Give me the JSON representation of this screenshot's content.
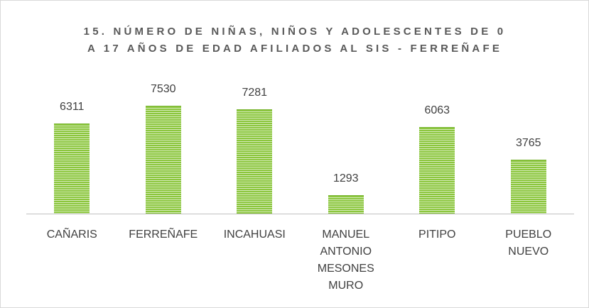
{
  "chart_data": {
    "type": "bar",
    "title": "15. NÚMERO DE NIÑAS, NIÑOS Y ADOLESCENTES DE 0 A 17 AÑOS DE EDAD AFILIADOS AL SIS - FERREÑAFE",
    "categories": [
      "CAÑARIS",
      "FERREÑAFE",
      "INCAHUASI",
      "MANUEL ANTONIO MESONES MURO",
      "PITIPO",
      "PUEBLO NUEVO"
    ],
    "values": [
      6311,
      7530,
      7281,
      1293,
      6063,
      3765
    ],
    "color": "#8cc63e",
    "ylim": [
      0,
      8000
    ]
  }
}
